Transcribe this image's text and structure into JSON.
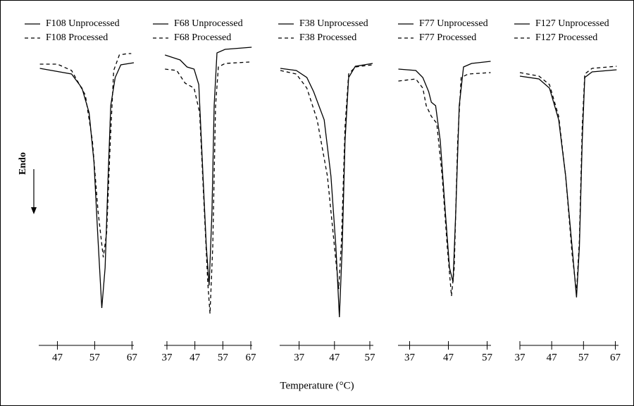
{
  "chart_data": [
    {
      "type": "line",
      "ylabel": "Endo",
      "xlim": [
        42,
        67.5
      ],
      "ylim": [
        0,
        100
      ],
      "xticks": [
        47,
        57,
        67
      ],
      "series": [
        {
          "name": "F108 Unprocessed",
          "color": "#000000",
          "linestyle": "solid",
          "x": [
            42.3,
            50.8,
            53.6,
            55.5,
            56.8,
            57.8,
            58.9,
            59.8,
            60.6,
            61.3,
            62.5,
            64.0,
            67.5
          ],
          "values": [
            90.75,
            88.75,
            83.75,
            75,
            57.5,
            32.5,
            5.75,
            20,
            52.5,
            77.5,
            87.5,
            92,
            92.75
          ]
        },
        {
          "name": "F108 Processed",
          "color": "#000000",
          "linestyle": "dashed",
          "x": [
            42.3,
            47.0,
            50.8,
            54.5,
            56.4,
            57.9,
            59.3,
            60.2,
            61.2,
            62.1,
            63.6,
            65.9,
            66.8
          ],
          "values": [
            92.25,
            92.25,
            90,
            81.25,
            65,
            40,
            23.75,
            32.5,
            65,
            90,
            95.5,
            96,
            96
          ]
        }
      ]
    },
    {
      "type": "line",
      "xlim": [
        36,
        67.5
      ],
      "ylim": [
        0,
        100
      ],
      "xticks": [
        37,
        47,
        57,
        67
      ],
      "series": [
        {
          "name": "F68 Unprocessed",
          "color": "#000000",
          "linestyle": "solid",
          "x": [
            36.3,
            41.7,
            44.2,
            46.7,
            48.4,
            49.9,
            51.1,
            52.1,
            53.1,
            53.9,
            54.9,
            57.8,
            67.3
          ],
          "values": [
            95.5,
            93.75,
            91.25,
            90.5,
            85,
            52.5,
            27.5,
            13.75,
            40,
            77.5,
            96.25,
            97.5,
            98.25
          ]
        },
        {
          "name": "F68 Processed",
          "color": "#000000",
          "linestyle": "dashed",
          "x": [
            36.3,
            40.5,
            43.5,
            46.7,
            48.7,
            50.4,
            51.6,
            52.4,
            53.4,
            54.4,
            55.4,
            57.8,
            66.5
          ],
          "values": [
            90.5,
            90,
            85.5,
            83.75,
            75,
            40,
            15,
            3.75,
            27.5,
            77.5,
            91.25,
            92.5,
            93
          ]
        }
      ]
    },
    {
      "type": "line",
      "xlabel": "Temperature (°C)",
      "xlim": [
        31.5,
        58
      ],
      "ylim": [
        0,
        100
      ],
      "xticks": [
        37,
        47,
        57
      ],
      "series": [
        {
          "name": "F38 Unprocessed",
          "color": "#000000",
          "linestyle": "solid",
          "x": [
            31.7,
            36.2,
            39.2,
            41.1,
            44.1,
            46.0,
            47.4,
            48.4,
            49.2,
            50.0,
            51.0,
            52.9,
            57.8
          ],
          "values": [
            90.75,
            90,
            87.5,
            82.5,
            72.5,
            52.5,
            27.5,
            2.5,
            27.5,
            65,
            87.5,
            91.5,
            92.5
          ]
        },
        {
          "name": "F38 Processed",
          "color": "#000000",
          "linestyle": "dashed",
          "x": [
            31.7,
            36.2,
            39.2,
            42.1,
            45.0,
            47.0,
            48.2,
            49.0,
            50.0,
            51.0,
            52.9,
            57.8
          ],
          "values": [
            90,
            88.75,
            83.75,
            72.5,
            52.5,
            27.5,
            12.5,
            30,
            70,
            88.75,
            91.25,
            92
          ]
        }
      ]
    },
    {
      "type": "line",
      "xlim": [
        34,
        58
      ],
      "ylim": [
        0,
        100
      ],
      "xticks": [
        37,
        47,
        57
      ],
      "series": [
        {
          "name": "F77 Unprocessed",
          "color": "#000000",
          "linestyle": "solid",
          "x": [
            34.1,
            38.6,
            40.4,
            41.9,
            42.6,
            43.7,
            44.9,
            46.2,
            47.3,
            48.2,
            48.9,
            49.8,
            50.9,
            53.0,
            57.9
          ],
          "values": [
            90.5,
            90,
            87.5,
            82.5,
            78.75,
            77.5,
            65,
            40,
            20,
            15,
            40,
            77.5,
            91.25,
            92.5,
            93.25
          ]
        },
        {
          "name": "F77 Processed",
          "color": "#000000",
          "linestyle": "dashed",
          "x": [
            34.1,
            38.6,
            40.4,
            41.3,
            42.6,
            44.0,
            45.4,
            46.7,
            47.8,
            48.5,
            49.4,
            50.3,
            52.1,
            57.9
          ],
          "values": [
            86.25,
            87,
            83.75,
            77.5,
            73.75,
            71.25,
            52.5,
            27.5,
            10,
            20,
            65,
            87.5,
            88.75,
            89.25
          ]
        }
      ]
    },
    {
      "type": "line",
      "xlim": [
        37,
        68
      ],
      "ylim": [
        0,
        100
      ],
      "xticks": [
        37,
        47,
        57,
        67
      ],
      "series": [
        {
          "name": "F127 Unprocessed",
          "color": "#000000",
          "linestyle": "solid",
          "x": [
            37,
            43,
            46.3,
            49.2,
            51.4,
            53.4,
            54.8,
            55.7,
            56.6,
            57.4,
            59.7,
            67.4
          ],
          "values": [
            88,
            87,
            83.75,
            72.5,
            52.5,
            27.5,
            9.5,
            27.5,
            65,
            87.5,
            89.5,
            90.25
          ]
        },
        {
          "name": "F127 Processed",
          "color": "#000000",
          "linestyle": "dashed",
          "x": [
            37,
            43,
            46.3,
            49.2,
            51.4,
            53.4,
            54.8,
            55.7,
            56.6,
            57.4,
            59.7,
            67.4
          ],
          "values": [
            89.25,
            88,
            85,
            73.75,
            52.5,
            25,
            11.25,
            30,
            70,
            88.75,
            90.75,
            91.5
          ]
        }
      ]
    }
  ]
}
